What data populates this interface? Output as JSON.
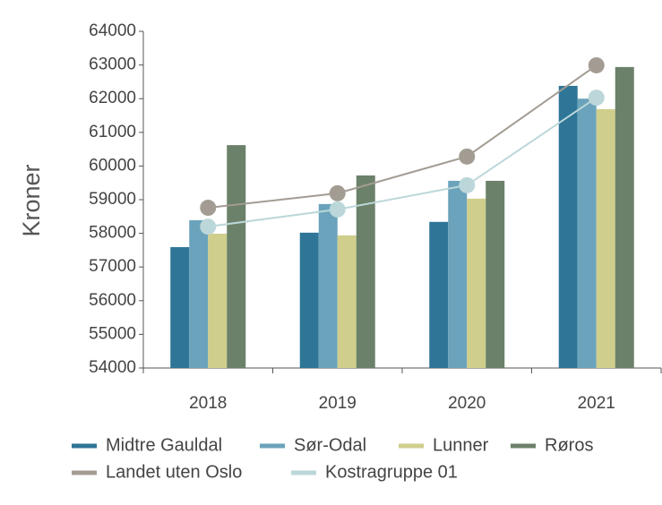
{
  "chart_data": {
    "type": "bar",
    "y_label": "Kroner",
    "categories": [
      "2018",
      "2019",
      "2020",
      "2021"
    ],
    "series": [
      {
        "name": "Midtre Gauldal",
        "color": "#2e7597",
        "type": "bar",
        "values": [
          57590,
          58020,
          58340,
          62380
        ]
      },
      {
        "name": "Sør-Odal",
        "color": "#6aa3bb",
        "type": "bar",
        "values": [
          58390,
          58870,
          59560,
          62000
        ]
      },
      {
        "name": "Lunner",
        "color": "#cfce8c",
        "type": "bar",
        "values": [
          57990,
          57940,
          59030,
          61690
        ]
      },
      {
        "name": "Røros",
        "color": "#6b8169",
        "type": "bar",
        "values": [
          60620,
          59720,
          59560,
          62940
        ]
      },
      {
        "name": "Landet uten Oslo",
        "color": "#a39c93",
        "type": "line",
        "values": [
          58760,
          59190,
          60280,
          62990
        ]
      },
      {
        "name": "Kostragruppe 01",
        "color": "#bcd7d9",
        "type": "line",
        "values": [
          58200,
          58710,
          59430,
          62030
        ]
      }
    ],
    "ylim": [
      54000,
      64000
    ],
    "yticks": [
      54000,
      55000,
      56000,
      57000,
      58000,
      59000,
      60000,
      61000,
      62000,
      63000,
      64000
    ]
  }
}
